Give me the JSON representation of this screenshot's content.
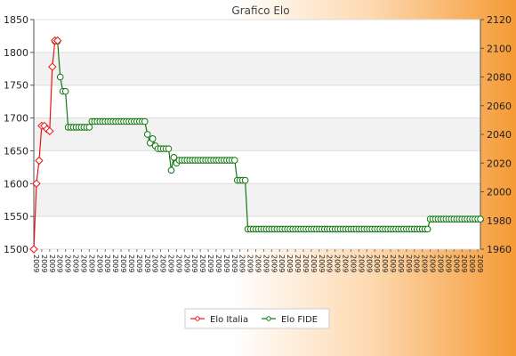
{
  "chart_data": {
    "type": "line",
    "title": "Grafico Elo",
    "y_left": {
      "min": 1500,
      "max": 1850,
      "ticks": [
        1500,
        1550,
        1600,
        1650,
        1700,
        1750,
        1800,
        1850
      ]
    },
    "y_right": {
      "min": 1960,
      "max": 2120,
      "ticks": [
        1960,
        1980,
        2000,
        2020,
        2040,
        2060,
        2080,
        2100,
        2120
      ]
    },
    "legend_position": "bottom-center",
    "grid": "horizontal bands",
    "series": [
      {
        "name": "Elo Italia",
        "color": "#ee1111",
        "axis": "left",
        "values": [
          1500,
          1600,
          1635,
          1688,
          1688,
          1683,
          1680,
          1778,
          1818,
          1818
        ]
      },
      {
        "name": "Elo FIDE",
        "color": "#117711",
        "axis": "right",
        "segments": [
          {
            "from": 8,
            "to": 10,
            "value": 2105
          },
          {
            "from": 10,
            "to": 11,
            "value": 2080
          },
          {
            "from": 11,
            "to": 13,
            "value": 2070
          },
          {
            "from": 13,
            "to": 22,
            "value": 2045
          },
          {
            "from": 22,
            "to": 43,
            "value": 2049
          },
          {
            "from": 43,
            "to": 44,
            "value": 2040
          },
          {
            "from": 44,
            "to": 45,
            "value": 2034
          },
          {
            "from": 45,
            "to": 46,
            "value": 2037
          },
          {
            "from": 46,
            "to": 47,
            "value": 2032
          },
          {
            "from": 47,
            "to": 52,
            "value": 2030
          },
          {
            "from": 52,
            "to": 53,
            "value": 2015
          },
          {
            "from": 53,
            "to": 54,
            "value": 2024
          },
          {
            "from": 54,
            "to": 55,
            "value": 2020
          },
          {
            "from": 55,
            "to": 77,
            "value": 2022
          },
          {
            "from": 77,
            "to": 81,
            "value": 2008
          },
          {
            "from": 81,
            "to": 150,
            "value": 1974
          },
          {
            "from": 150,
            "to": 170,
            "value": 1981
          }
        ]
      }
    ],
    "x_count": 170,
    "x_label_prefix": "2009"
  }
}
